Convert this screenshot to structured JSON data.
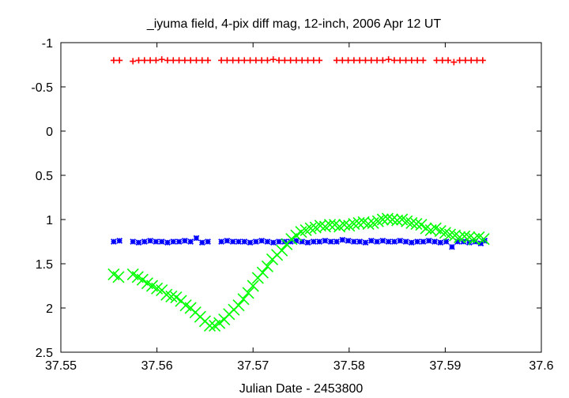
{
  "chart_data": {
    "type": "scatter",
    "title": "_iyuma field,  4-pix diff mag, 12-inch, 2006 Apr 12 UT",
    "xlabel": "Julian Date - 2453800",
    "ylabel": "",
    "xlim": [
      37.55,
      37.6
    ],
    "ylim": [
      2.5,
      -1
    ],
    "y_inverted": true,
    "grid": false,
    "legend": "none",
    "x_ticks": [
      "37.55",
      "37.56",
      "37.57",
      "37.58",
      "37.59",
      "37.6"
    ],
    "y_ticks": [
      "-1",
      "-0.5",
      "0",
      "0.5",
      "1",
      "1.5",
      "2",
      "2.5"
    ],
    "series": [
      {
        "color": "#ff0000",
        "marker": "plus",
        "x": [
          37.5555,
          37.5561,
          37.5575,
          37.5581,
          37.5587,
          37.5593,
          37.5599,
          37.5605,
          37.5611,
          37.5617,
          37.5623,
          37.5629,
          37.5635,
          37.5641,
          37.5647,
          37.5653,
          37.5667,
          37.5673,
          37.5679,
          37.5685,
          37.5691,
          37.5697,
          37.5703,
          37.5709,
          37.5715,
          37.5721,
          37.5727,
          37.5733,
          37.5739,
          37.5745,
          37.5751,
          37.5757,
          37.5763,
          37.5769,
          37.5787,
          37.5793,
          37.5799,
          37.5805,
          37.5811,
          37.5817,
          37.5823,
          37.5829,
          37.5835,
          37.5841,
          37.5847,
          37.5853,
          37.5859,
          37.5865,
          37.5871,
          37.5877,
          37.5891,
          37.5897,
          37.5903,
          37.5909,
          37.5915,
          37.5921,
          37.5927,
          37.5933,
          37.5939
        ],
        "y": [
          -0.8,
          -0.8,
          -0.79,
          -0.8,
          -0.8,
          -0.8,
          -0.8,
          -0.81,
          -0.8,
          -0.8,
          -0.8,
          -0.8,
          -0.8,
          -0.8,
          -0.8,
          -0.8,
          -0.8,
          -0.8,
          -0.8,
          -0.8,
          -0.8,
          -0.8,
          -0.8,
          -0.8,
          -0.8,
          -0.81,
          -0.8,
          -0.8,
          -0.8,
          -0.8,
          -0.8,
          -0.8,
          -0.8,
          -0.8,
          -0.8,
          -0.8,
          -0.8,
          -0.8,
          -0.8,
          -0.8,
          -0.8,
          -0.8,
          -0.8,
          -0.81,
          -0.8,
          -0.8,
          -0.8,
          -0.8,
          -0.8,
          -0.8,
          -0.8,
          -0.8,
          -0.8,
          -0.78,
          -0.8,
          -0.8,
          -0.8,
          -0.8,
          -0.8
        ]
      },
      {
        "color": "#0000ff",
        "marker": "star",
        "x": [
          37.5555,
          37.5561,
          37.5575,
          37.5581,
          37.5587,
          37.5593,
          37.5599,
          37.5605,
          37.5611,
          37.5617,
          37.5623,
          37.5629,
          37.5635,
          37.5641,
          37.5647,
          37.5653,
          37.5667,
          37.5673,
          37.5679,
          37.5685,
          37.5691,
          37.5697,
          37.5703,
          37.5709,
          37.5715,
          37.5721,
          37.5727,
          37.5733,
          37.5739,
          37.5745,
          37.5751,
          37.5757,
          37.5763,
          37.5769,
          37.5775,
          37.5781,
          37.5787,
          37.5793,
          37.5799,
          37.5805,
          37.5811,
          37.5817,
          37.5823,
          37.5829,
          37.5835,
          37.5841,
          37.5847,
          37.5853,
          37.5859,
          37.5865,
          37.5871,
          37.5877,
          37.5883,
          37.5889,
          37.5895,
          37.5901,
          37.5907,
          37.5913,
          37.5919,
          37.5925,
          37.5931,
          37.5937,
          37.5941
        ],
        "y": [
          1.25,
          1.24,
          1.25,
          1.26,
          1.25,
          1.24,
          1.25,
          1.25,
          1.26,
          1.25,
          1.25,
          1.24,
          1.25,
          1.21,
          1.26,
          1.25,
          1.25,
          1.24,
          1.25,
          1.25,
          1.25,
          1.26,
          1.25,
          1.24,
          1.25,
          1.26,
          1.25,
          1.25,
          1.25,
          1.24,
          1.25,
          1.26,
          1.25,
          1.25,
          1.24,
          1.25,
          1.25,
          1.23,
          1.24,
          1.25,
          1.25,
          1.26,
          1.24,
          1.25,
          1.24,
          1.25,
          1.25,
          1.24,
          1.25,
          1.26,
          1.25,
          1.25,
          1.24,
          1.25,
          1.26,
          1.25,
          1.31,
          1.25,
          1.25,
          1.26,
          1.25,
          1.27,
          1.24
        ]
      },
      {
        "color": "#00ff00",
        "marker": "cross",
        "x": [
          37.5555,
          37.556,
          37.5575,
          37.558,
          37.5585,
          37.559,
          37.5595,
          37.56,
          37.5605,
          37.561,
          37.5615,
          37.562,
          37.5625,
          37.563,
          37.5635,
          37.564,
          37.5645,
          37.565,
          37.5655,
          37.566,
          37.5665,
          37.567,
          37.5675,
          37.568,
          37.5685,
          37.569,
          37.5695,
          37.57,
          37.5705,
          37.571,
          37.5715,
          37.572,
          37.5725,
          37.573,
          37.5735,
          37.574,
          37.5745,
          37.575,
          37.5755,
          37.576,
          37.5765,
          37.577,
          37.5775,
          37.578,
          37.5785,
          37.579,
          37.5795,
          37.58,
          37.5805,
          37.581,
          37.5815,
          37.582,
          37.5825,
          37.583,
          37.5835,
          37.584,
          37.5845,
          37.585,
          37.5855,
          37.586,
          37.5865,
          37.587,
          37.5875,
          37.588,
          37.5885,
          37.589,
          37.5895,
          37.59,
          37.5905,
          37.591,
          37.5915,
          37.592,
          37.5925,
          37.593,
          37.5935,
          37.594
        ],
        "y": [
          1.62,
          1.65,
          1.62,
          1.65,
          1.68,
          1.72,
          1.75,
          1.78,
          1.8,
          1.85,
          1.87,
          1.88,
          1.92,
          1.97,
          2.0,
          2.05,
          2.1,
          2.15,
          2.2,
          2.2,
          2.17,
          2.13,
          2.07,
          2.02,
          1.97,
          1.9,
          1.83,
          1.75,
          1.66,
          1.6,
          1.53,
          1.45,
          1.4,
          1.35,
          1.28,
          1.22,
          1.18,
          1.14,
          1.12,
          1.1,
          1.09,
          1.07,
          1.08,
          1.06,
          1.06,
          1.08,
          1.06,
          1.07,
          1.05,
          1.04,
          1.03,
          1.05,
          1.04,
          1.02,
          1.0,
          0.99,
          1.0,
          1.01,
          1.0,
          1.02,
          1.04,
          1.05,
          1.06,
          1.1,
          1.12,
          1.1,
          1.13,
          1.15,
          1.17,
          1.18,
          1.2,
          1.19,
          1.2,
          1.22,
          1.2,
          1.22
        ]
      }
    ]
  }
}
